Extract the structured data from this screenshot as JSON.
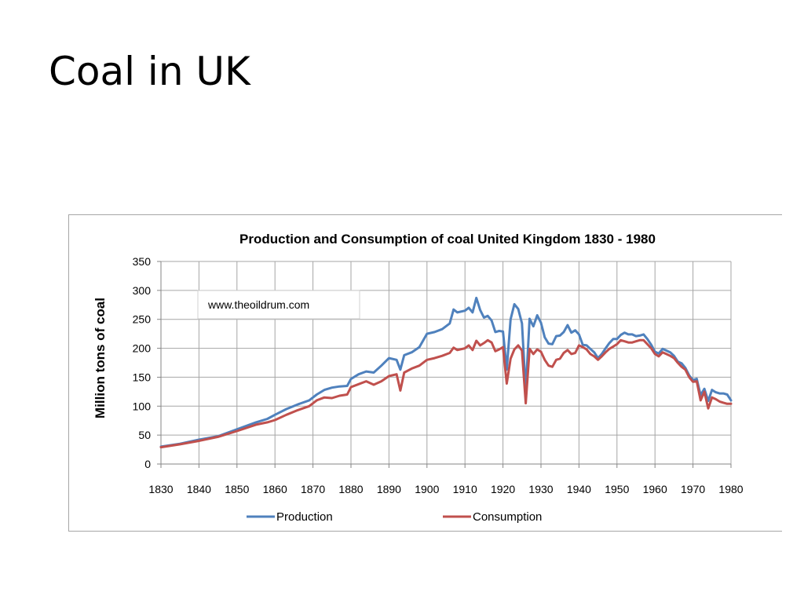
{
  "slide": {
    "title": "Coal in UK"
  },
  "chart_data": {
    "type": "line",
    "title": "Production and Consumption of coal United Kingdom 1830 - 1980",
    "xlabel": "",
    "ylabel": "Million tons of coal",
    "xlim": [
      1830,
      1980
    ],
    "ylim": [
      0,
      350
    ],
    "x_ticks": [
      1830,
      1840,
      1850,
      1860,
      1870,
      1880,
      1890,
      1900,
      1910,
      1920,
      1930,
      1940,
      1950,
      1960,
      1970,
      1980
    ],
    "y_ticks": [
      0,
      50,
      100,
      150,
      200,
      250,
      300,
      350
    ],
    "grid": true,
    "legend_position": "bottom",
    "annotation": "www.theoildrum.com",
    "series": [
      {
        "name": "Production",
        "color": "#4f81bd",
        "points": [
          [
            1830,
            30
          ],
          [
            1835,
            35
          ],
          [
            1840,
            42
          ],
          [
            1845,
            48
          ],
          [
            1850,
            60
          ],
          [
            1855,
            72
          ],
          [
            1858,
            78
          ],
          [
            1860,
            85
          ],
          [
            1863,
            95
          ],
          [
            1866,
            103
          ],
          [
            1869,
            110
          ],
          [
            1871,
            120
          ],
          [
            1873,
            128
          ],
          [
            1875,
            132
          ],
          [
            1877,
            134
          ],
          [
            1879,
            135
          ],
          [
            1880,
            147
          ],
          [
            1882,
            155
          ],
          [
            1884,
            160
          ],
          [
            1886,
            158
          ],
          [
            1888,
            170
          ],
          [
            1890,
            183
          ],
          [
            1892,
            180
          ],
          [
            1893,
            163
          ],
          [
            1894,
            188
          ],
          [
            1896,
            193
          ],
          [
            1898,
            202
          ],
          [
            1900,
            225
          ],
          [
            1902,
            228
          ],
          [
            1904,
            233
          ],
          [
            1906,
            243
          ],
          [
            1907,
            267
          ],
          [
            1908,
            262
          ],
          [
            1910,
            265
          ],
          [
            1911,
            270
          ],
          [
            1912,
            262
          ],
          [
            1913,
            287
          ],
          [
            1914,
            266
          ],
          [
            1915,
            253
          ],
          [
            1916,
            256
          ],
          [
            1917,
            248
          ],
          [
            1918,
            228
          ],
          [
            1919,
            230
          ],
          [
            1920,
            229
          ],
          [
            1921,
            163
          ],
          [
            1922,
            250
          ],
          [
            1923,
            276
          ],
          [
            1924,
            268
          ],
          [
            1925,
            243
          ],
          [
            1926,
            126
          ],
          [
            1927,
            251
          ],
          [
            1928,
            238
          ],
          [
            1929,
            257
          ],
          [
            1930,
            244
          ],
          [
            1931,
            219
          ],
          [
            1932,
            208
          ],
          [
            1933,
            207
          ],
          [
            1934,
            221
          ],
          [
            1935,
            222
          ],
          [
            1936,
            228
          ],
          [
            1937,
            240
          ],
          [
            1938,
            227
          ],
          [
            1939,
            231
          ],
          [
            1940,
            224
          ],
          [
            1941,
            206
          ],
          [
            1942,
            205
          ],
          [
            1943,
            199
          ],
          [
            1944,
            193
          ],
          [
            1945,
            183
          ],
          [
            1946,
            190
          ],
          [
            1947,
            200
          ],
          [
            1948,
            209
          ],
          [
            1949,
            216
          ],
          [
            1950,
            216
          ],
          [
            1951,
            223
          ],
          [
            1952,
            227
          ],
          [
            1953,
            224
          ],
          [
            1954,
            224
          ],
          [
            1955,
            221
          ],
          [
            1956,
            222
          ],
          [
            1957,
            224
          ],
          [
            1958,
            216
          ],
          [
            1959,
            206
          ],
          [
            1960,
            194
          ],
          [
            1961,
            191
          ],
          [
            1962,
            199
          ],
          [
            1963,
            196
          ],
          [
            1964,
            193
          ],
          [
            1965,
            187
          ],
          [
            1966,
            177
          ],
          [
            1967,
            174
          ],
          [
            1968,
            166
          ],
          [
            1969,
            153
          ],
          [
            1970,
            145
          ],
          [
            1971,
            147
          ],
          [
            1972,
            119
          ],
          [
            1973,
            130
          ],
          [
            1974,
            109
          ],
          [
            1975,
            128
          ],
          [
            1976,
            124
          ],
          [
            1977,
            122
          ],
          [
            1978,
            122
          ],
          [
            1979,
            120
          ],
          [
            1980,
            110
          ]
        ]
      },
      {
        "name": "Consumption",
        "color": "#c0504d",
        "points": [
          [
            1830,
            29
          ],
          [
            1835,
            34
          ],
          [
            1840,
            40
          ],
          [
            1845,
            47
          ],
          [
            1850,
            57
          ],
          [
            1855,
            68
          ],
          [
            1858,
            72
          ],
          [
            1860,
            76
          ],
          [
            1863,
            85
          ],
          [
            1866,
            93
          ],
          [
            1869,
            100
          ],
          [
            1871,
            110
          ],
          [
            1873,
            115
          ],
          [
            1875,
            114
          ],
          [
            1877,
            118
          ],
          [
            1879,
            120
          ],
          [
            1880,
            133
          ],
          [
            1882,
            138
          ],
          [
            1884,
            143
          ],
          [
            1886,
            137
          ],
          [
            1888,
            143
          ],
          [
            1890,
            152
          ],
          [
            1892,
            155
          ],
          [
            1893,
            127
          ],
          [
            1894,
            158
          ],
          [
            1896,
            165
          ],
          [
            1898,
            170
          ],
          [
            1900,
            180
          ],
          [
            1902,
            183
          ],
          [
            1904,
            187
          ],
          [
            1906,
            192
          ],
          [
            1907,
            201
          ],
          [
            1908,
            197
          ],
          [
            1910,
            200
          ],
          [
            1911,
            205
          ],
          [
            1912,
            197
          ],
          [
            1913,
            213
          ],
          [
            1914,
            205
          ],
          [
            1915,
            209
          ],
          [
            1916,
            214
          ],
          [
            1917,
            210
          ],
          [
            1918,
            195
          ],
          [
            1919,
            198
          ],
          [
            1920,
            202
          ],
          [
            1921,
            139
          ],
          [
            1922,
            182
          ],
          [
            1923,
            198
          ],
          [
            1924,
            205
          ],
          [
            1925,
            196
          ],
          [
            1926,
            105
          ],
          [
            1927,
            199
          ],
          [
            1928,
            190
          ],
          [
            1929,
            198
          ],
          [
            1930,
            194
          ],
          [
            1931,
            180
          ],
          [
            1932,
            170
          ],
          [
            1933,
            168
          ],
          [
            1934,
            180
          ],
          [
            1935,
            182
          ],
          [
            1936,
            192
          ],
          [
            1937,
            197
          ],
          [
            1938,
            190
          ],
          [
            1939,
            192
          ],
          [
            1940,
            205
          ],
          [
            1941,
            202
          ],
          [
            1942,
            198
          ],
          [
            1943,
            190
          ],
          [
            1944,
            186
          ],
          [
            1945,
            180
          ],
          [
            1946,
            186
          ],
          [
            1947,
            193
          ],
          [
            1948,
            199
          ],
          [
            1949,
            203
          ],
          [
            1950,
            207
          ],
          [
            1951,
            214
          ],
          [
            1952,
            212
          ],
          [
            1953,
            210
          ],
          [
            1954,
            210
          ],
          [
            1955,
            212
          ],
          [
            1956,
            214
          ],
          [
            1957,
            214
          ],
          [
            1958,
            207
          ],
          [
            1959,
            200
          ],
          [
            1960,
            190
          ],
          [
            1961,
            186
          ],
          [
            1962,
            193
          ],
          [
            1963,
            190
          ],
          [
            1964,
            187
          ],
          [
            1965,
            183
          ],
          [
            1966,
            175
          ],
          [
            1967,
            168
          ],
          [
            1968,
            163
          ],
          [
            1969,
            150
          ],
          [
            1970,
            142
          ],
          [
            1971,
            143
          ],
          [
            1972,
            110
          ],
          [
            1973,
            125
          ],
          [
            1974,
            96
          ],
          [
            1975,
            115
          ],
          [
            1976,
            112
          ],
          [
            1977,
            108
          ],
          [
            1978,
            106
          ],
          [
            1979,
            104
          ],
          [
            1980,
            104
          ]
        ]
      }
    ]
  }
}
